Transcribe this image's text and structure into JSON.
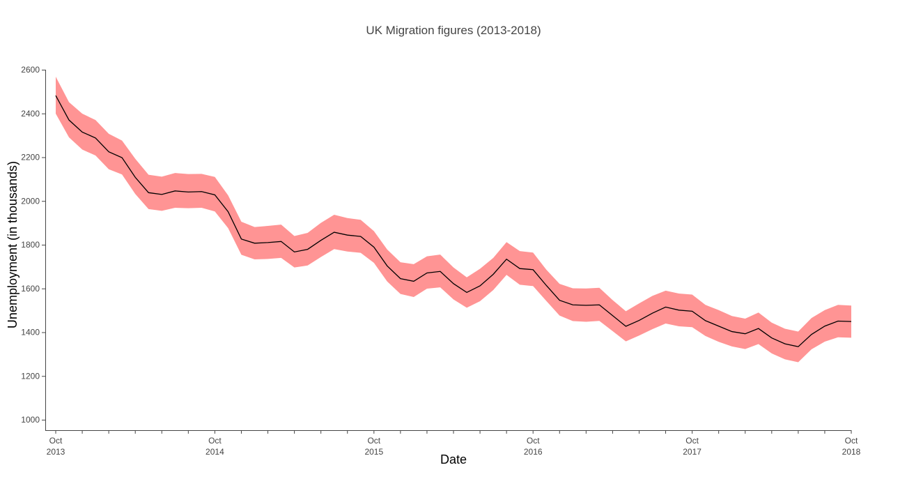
{
  "chart_data": {
    "type": "area",
    "title": "UK Migration figures (2013-2018)",
    "xlabel": "Date",
    "ylabel": "Unemployment (in thousands)",
    "ylim": [
      960,
      2600
    ],
    "y_ticks": [
      "2600",
      "2400",
      "2200",
      "2000",
      "1800",
      "1600",
      "1400",
      "1200",
      "1000"
    ],
    "x_ticks": [
      {
        "date": "2013-10",
        "month": "Oct",
        "year": "2013"
      },
      {
        "date": "2014-10",
        "month": "Oct",
        "year": "2014"
      },
      {
        "date": "2015-10",
        "month": "Oct",
        "year": "2015"
      },
      {
        "date": "2016-10",
        "month": "Oct",
        "year": "2016"
      },
      {
        "date": "2017-10",
        "month": "Oct",
        "year": "2017"
      },
      {
        "date": "2018-10",
        "month": "Oct",
        "year": "2018"
      }
    ],
    "grid": false,
    "band_color": "#ff9494",
    "line_color": "#000000",
    "x": [
      "2013-10",
      "2013-11",
      "2013-12",
      "2014-01",
      "2014-02",
      "2014-03",
      "2014-04",
      "2014-05",
      "2014-06",
      "2014-07",
      "2014-08",
      "2014-09",
      "2014-10",
      "2014-11",
      "2014-12",
      "2015-01",
      "2015-02",
      "2015-03",
      "2015-04",
      "2015-05",
      "2015-06",
      "2015-07",
      "2015-08",
      "2015-09",
      "2015-10",
      "2015-11",
      "2015-12",
      "2016-01",
      "2016-02",
      "2016-03",
      "2016-04",
      "2016-05",
      "2016-06",
      "2016-07",
      "2016-08",
      "2016-09",
      "2016-10",
      "2016-11",
      "2016-12",
      "2017-01",
      "2017-02",
      "2017-03",
      "2017-04",
      "2017-05",
      "2017-06",
      "2017-07",
      "2017-08",
      "2017-09",
      "2017-10",
      "2017-11",
      "2017-12",
      "2018-01",
      "2018-02",
      "2018-03",
      "2018-04",
      "2018-05",
      "2018-06",
      "2018-07",
      "2018-08",
      "2018-09",
      "2018-10"
    ],
    "series": [
      {
        "values": [
          2482,
          2370,
          2315,
          2288,
          2225,
          2198,
          2108,
          2038,
          2030,
          2046,
          2041,
          2043,
          2028,
          1951,
          1826,
          1807,
          1810,
          1815,
          1767,
          1779,
          1820,
          1857,
          1844,
          1838,
          1789,
          1703,
          1645,
          1633,
          1671,
          1678,
          1622,
          1582,
          1612,
          1665,
          1734,
          1691,
          1686,
          1614,
          1546,
          1525,
          1523,
          1525,
          1476,
          1427,
          1454,
          1487,
          1515,
          1501,
          1496,
          1453,
          1428,
          1403,
          1393,
          1417,
          1374,
          1347,
          1334,
          1390,
          1428,
          1451,
          1449
        ]
      },
      {
        "name": "upper",
        "values": [
          2568,
          2452,
          2399,
          2370,
          2307,
          2276,
          2193,
          2120,
          2111,
          2128,
          2123,
          2124,
          2110,
          2026,
          1905,
          1881,
          1886,
          1892,
          1840,
          1854,
          1900,
          1937,
          1922,
          1914,
          1862,
          1778,
          1720,
          1711,
          1747,
          1755,
          1696,
          1651,
          1690,
          1740,
          1812,
          1771,
          1764,
          1686,
          1621,
          1601,
          1600,
          1603,
          1547,
          1496,
          1532,
          1566,
          1590,
          1577,
          1572,
          1525,
          1501,
          1474,
          1462,
          1490,
          1444,
          1416,
          1403,
          1465,
          1501,
          1525,
          1522
        ]
      },
      {
        "name": "lower",
        "values": [
          2399,
          2291,
          2235,
          2208,
          2145,
          2121,
          2032,
          1963,
          1955,
          1969,
          1967,
          1969,
          1952,
          1876,
          1754,
          1733,
          1735,
          1740,
          1696,
          1705,
          1744,
          1780,
          1769,
          1763,
          1717,
          1632,
          1575,
          1561,
          1599,
          1605,
          1550,
          1512,
          1542,
          1593,
          1662,
          1617,
          1611,
          1543,
          1476,
          1451,
          1448,
          1452,
          1405,
          1358,
          1385,
          1414,
          1440,
          1427,
          1423,
          1383,
          1356,
          1335,
          1323,
          1346,
          1303,
          1276,
          1263,
          1322,
          1357,
          1377,
          1375
        ]
      }
    ]
  }
}
